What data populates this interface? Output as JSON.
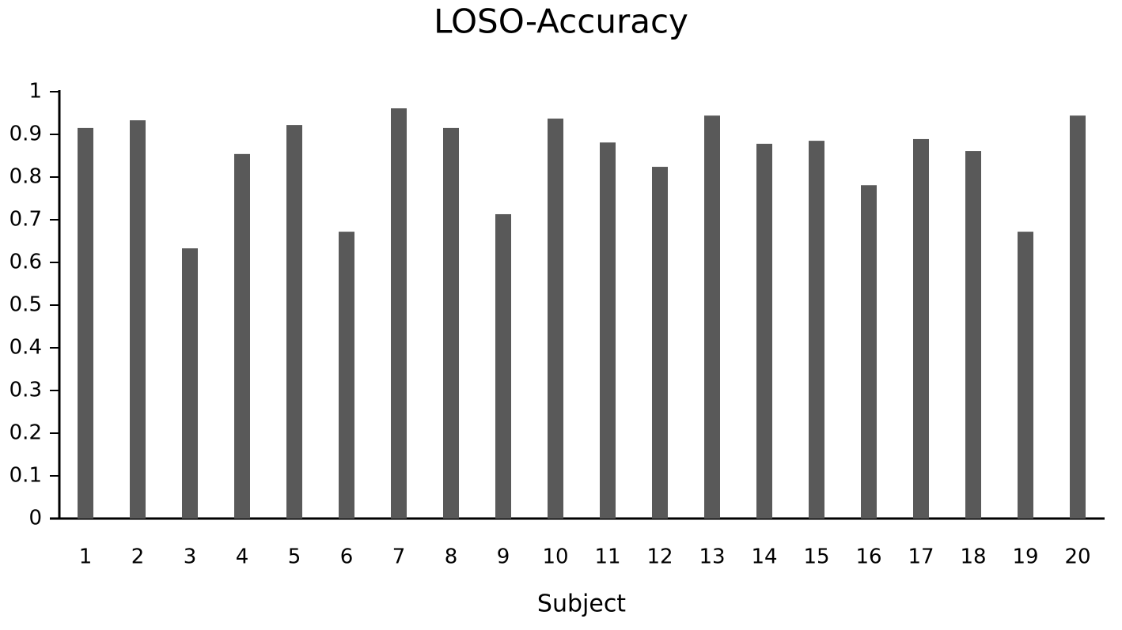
{
  "chart_data": {
    "type": "bar",
    "title": "LOSO-Accuracy",
    "x_label": "Subject",
    "categories": [
      "1",
      "2",
      "3",
      "4",
      "5",
      "6",
      "7",
      "8",
      "9",
      "10",
      "11",
      "12",
      "13",
      "14",
      "15",
      "16",
      "17",
      "18",
      "19",
      "20"
    ],
    "values": [
      0.915,
      0.933,
      0.633,
      0.854,
      0.922,
      0.672,
      0.961,
      0.915,
      0.713,
      0.937,
      0.881,
      0.824,
      0.944,
      0.878,
      0.885,
      0.781,
      0.889,
      0.861,
      0.672,
      0.944
    ],
    "color": "#595959",
    "ylim": [
      0,
      1
    ],
    "yticks": [
      0,
      0.1,
      0.2,
      0.3,
      0.4,
      0.5,
      0.6,
      0.7,
      0.8,
      0.9,
      1
    ],
    "grid": false
  }
}
